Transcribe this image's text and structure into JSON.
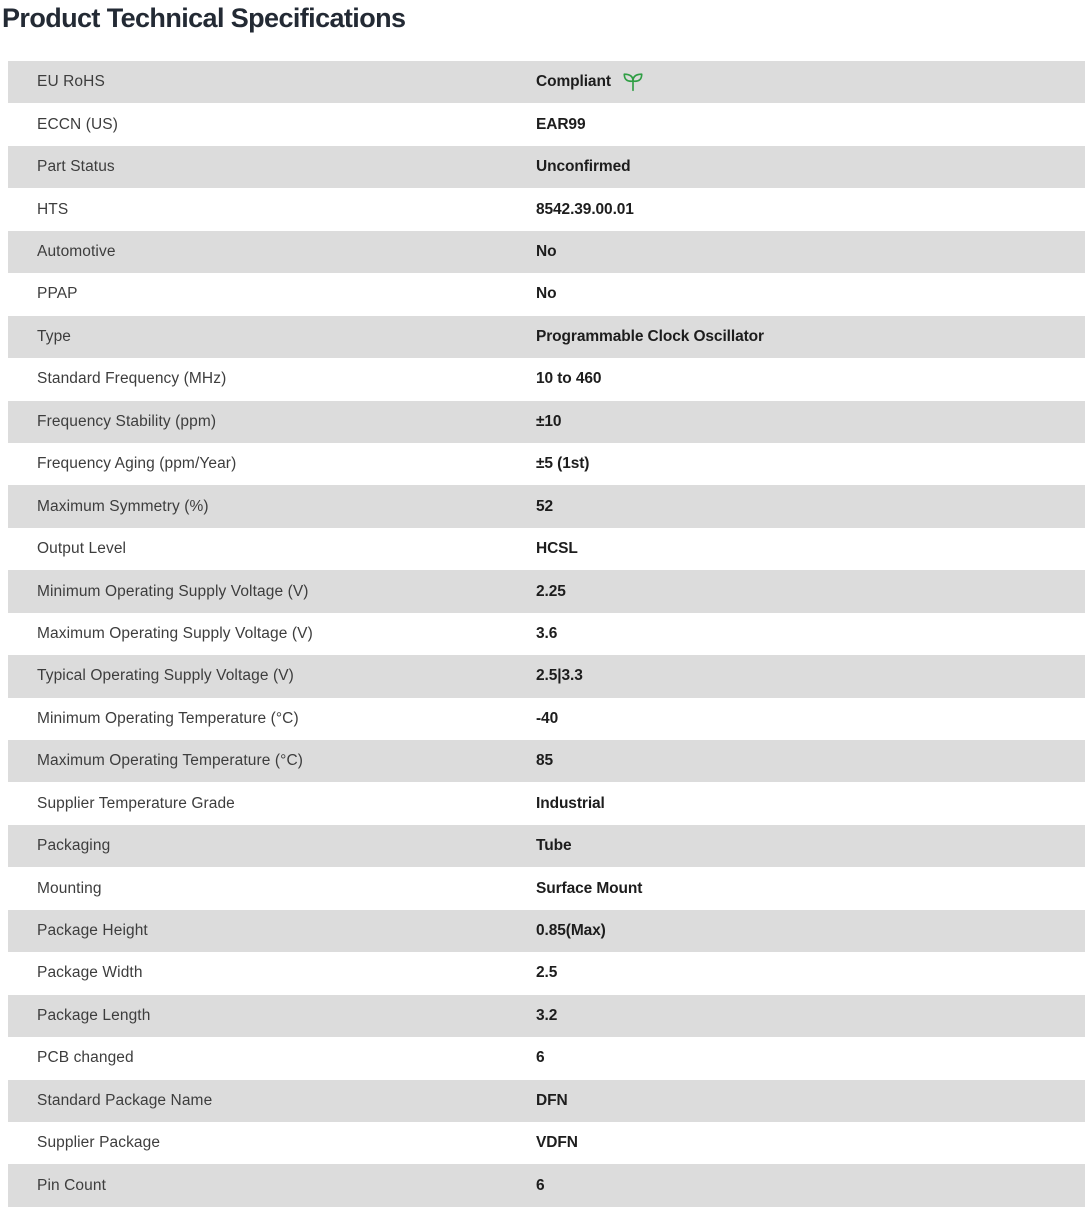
{
  "page": {
    "title": "Product Technical Specifications"
  },
  "colors": {
    "row_alt_background": "#dcdcdc",
    "row_background": "#ffffff",
    "title_text": "#232a34",
    "label_text": "#3d3d3d",
    "value_text": "#1d1d1d",
    "compliant_green": "#2f9e44"
  },
  "table": {
    "rows": [
      {
        "label": "EU RoHS",
        "value": "Compliant",
        "icon": "leaf-icon"
      },
      {
        "label": "ECCN (US)",
        "value": "EAR99"
      },
      {
        "label": "Part Status",
        "value": "Unconfirmed"
      },
      {
        "label": "HTS",
        "value": "8542.39.00.01"
      },
      {
        "label": "Automotive",
        "value": "No"
      },
      {
        "label": "PPAP",
        "value": "No"
      },
      {
        "label": "Type",
        "value": "Programmable Clock Oscillator"
      },
      {
        "label": "Standard Frequency (MHz)",
        "value": "10 to 460"
      },
      {
        "label": "Frequency Stability (ppm)",
        "value": "±10"
      },
      {
        "label": "Frequency Aging (ppm/Year)",
        "value": "±5 (1st)"
      },
      {
        "label": "Maximum Symmetry (%)",
        "value": "52"
      },
      {
        "label": "Output Level",
        "value": "HCSL"
      },
      {
        "label": "Minimum Operating Supply Voltage (V)",
        "value": "2.25"
      },
      {
        "label": "Maximum Operating Supply Voltage (V)",
        "value": "3.6"
      },
      {
        "label": "Typical Operating Supply Voltage (V)",
        "value": "2.5|3.3"
      },
      {
        "label": "Minimum Operating Temperature (°C)",
        "value": "-40"
      },
      {
        "label": "Maximum Operating Temperature (°C)",
        "value": "85"
      },
      {
        "label": "Supplier Temperature Grade",
        "value": "Industrial"
      },
      {
        "label": "Packaging",
        "value": "Tube"
      },
      {
        "label": "Mounting",
        "value": "Surface Mount"
      },
      {
        "label": "Package Height",
        "value": "0.85(Max)"
      },
      {
        "label": "Package Width",
        "value": "2.5"
      },
      {
        "label": "Package Length",
        "value": "3.2"
      },
      {
        "label": "PCB changed",
        "value": "6"
      },
      {
        "label": "Standard Package Name",
        "value": "DFN"
      },
      {
        "label": "Supplier Package",
        "value": "VDFN"
      },
      {
        "label": "Pin Count",
        "value": "6"
      }
    ]
  }
}
